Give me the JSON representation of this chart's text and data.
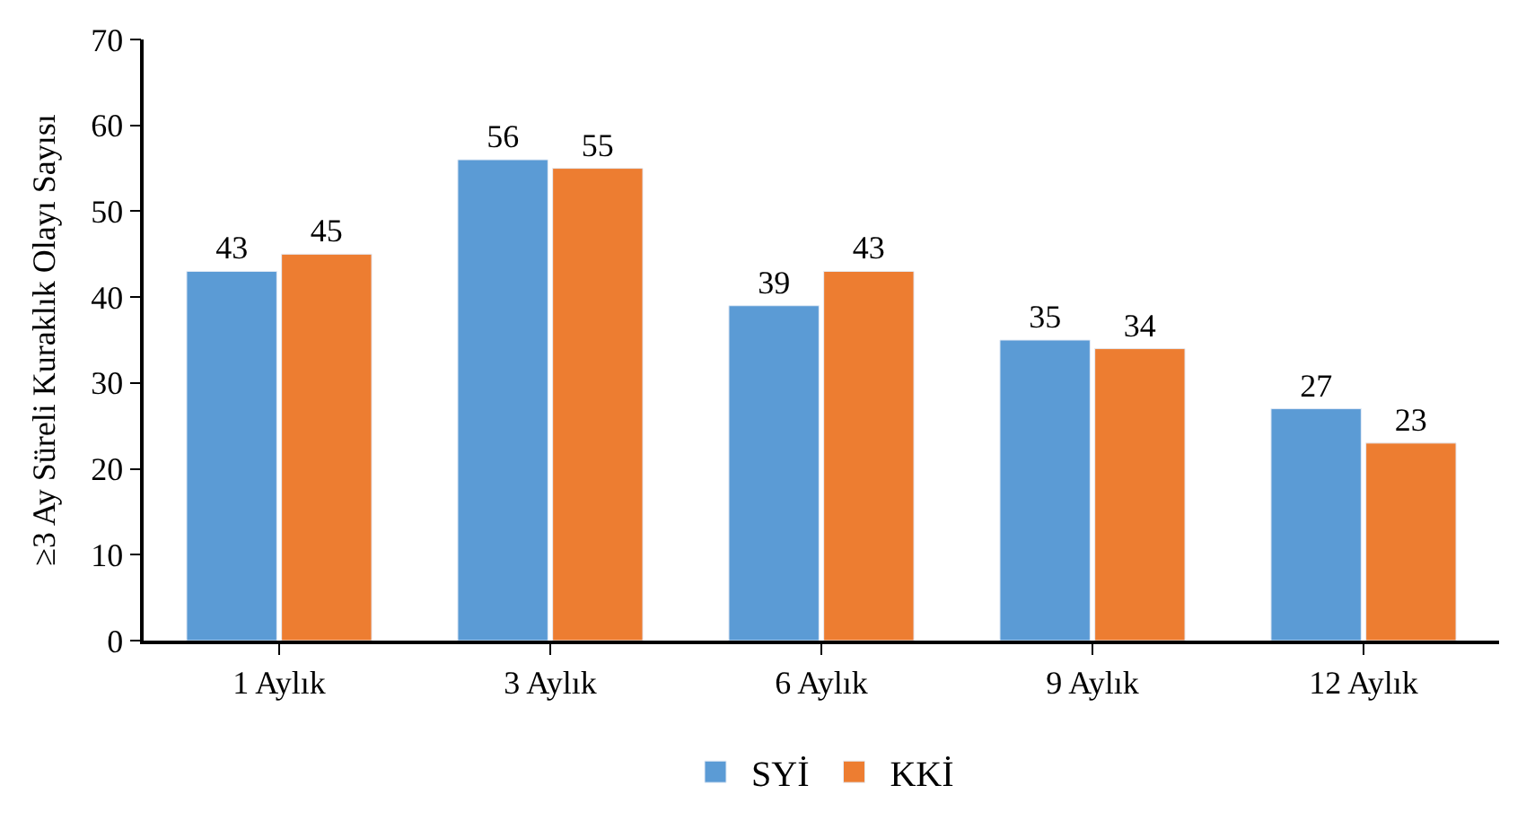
{
  "chart_data": {
    "type": "bar",
    "ylabel": "≥3 Ay Süreli Kuraklık Olayı Sayısı",
    "categories": [
      "1 Aylık",
      "3 Aylık",
      "6 Aylık",
      "9 Aylık",
      "12 Aylık"
    ],
    "series": [
      {
        "name": "SYİ",
        "color": "#5b9bd5",
        "values": [
          43,
          56,
          39,
          35,
          27
        ]
      },
      {
        "name": "KKİ",
        "color": "#ed7d31",
        "values": [
          45,
          55,
          43,
          34,
          23
        ]
      }
    ],
    "ylim": [
      0,
      70
    ],
    "yticks": [
      0,
      10,
      20,
      30,
      40,
      50,
      60,
      70
    ],
    "data_labels": true,
    "legend": "bottom"
  }
}
